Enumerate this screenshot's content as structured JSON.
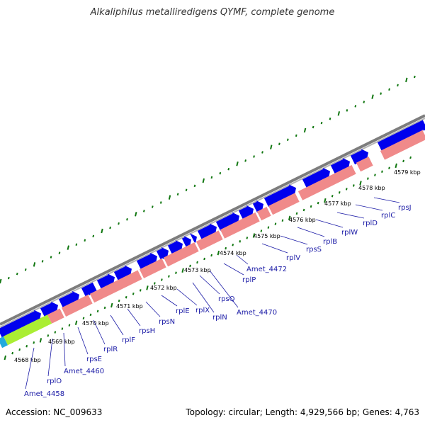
{
  "title": "Alkaliphilus metalliredigens QYMF, complete genome",
  "footer": {
    "accession": "Accession: NC_009633",
    "topology": "Topology: circular; Length: 4,929,566 bp; Genes: 4,763"
  },
  "colors": {
    "forward_gene": "#0000ee",
    "reverse_gene": "#f08a8a",
    "reverse_gene_highlight": "#aaee33",
    "start_gene": "#22aadd",
    "backbone": "#888888",
    "ticks": "#117711",
    "labels": "#1a1aa6"
  },
  "kbp_ticks": [
    "4568 kbp",
    "4569 kbp",
    "4570 kbp",
    "4571 kbp",
    "4572 kbp",
    "4573 kbp",
    "4574 kbp",
    "4575 kbp",
    "4576 kbp",
    "4577 kbp",
    "4578 kbp",
    "4579 kbp"
  ],
  "genes": [
    "Amet_4458",
    "rplO",
    "Amet_4460",
    "rpsE",
    "rplR",
    "rplF",
    "rpsH",
    "rpsN",
    "rplE",
    "rplX",
    "rplN",
    "rpsQ",
    "Amet_4470",
    "rplP",
    "Amet_4472",
    "rplV",
    "rpsS",
    "rplB",
    "rplW",
    "rplD",
    "rplC",
    "rpsJ"
  ]
}
